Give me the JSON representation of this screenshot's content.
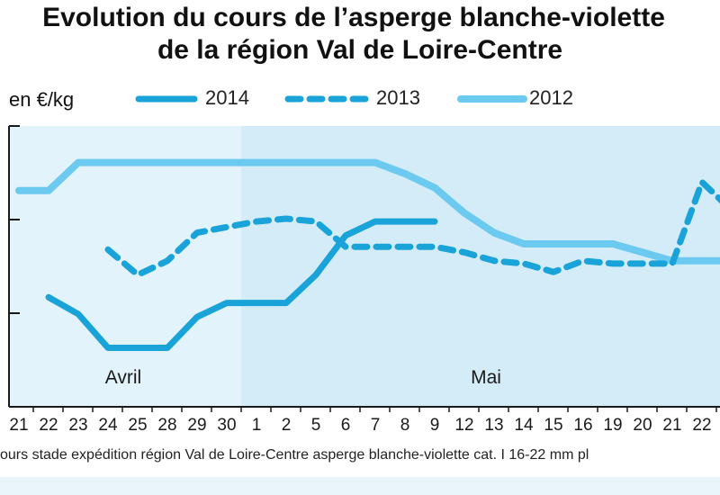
{
  "title_line1": "Evolution du cours de l’asperge blanche-violette",
  "title_line2": "de la région Val de Loire-Centre",
  "unit_label": "en €/kg",
  "source_text": "ours stade expédition région Val de Loire-Centre asperge blanche-violette cat. I 16-22 mm pl",
  "colors": {
    "s2014": "#1aa3d9",
    "s2013": "#1aa3d9",
    "s2012": "#6ccaf0",
    "april_bg": "#e3f3fb",
    "may_bg": "#d3ecf8",
    "axis": "#1a1a1a"
  },
  "chart_data": {
    "type": "line",
    "title": "Evolution du cours de l’asperge blanche-violette de la région Val de Loire-Centre",
    "ylabel": "en €/kg",
    "y_gridlines": 3,
    "grid": false,
    "legend_position": "top",
    "month_labels": [
      "Avril",
      "Mai"
    ],
    "x": [
      "21",
      "22",
      "23",
      "24",
      "25",
      "28",
      "29",
      "30",
      "1",
      "2",
      "5",
      "6",
      "7",
      "8",
      "9",
      "12",
      "13",
      "14",
      "15",
      "16",
      "19",
      "20",
      "21",
      "22",
      "2"
    ],
    "series": [
      {
        "name": "2014",
        "style": "solid",
        "values": [
          null,
          0.64,
          0.58,
          0.46,
          0.46,
          0.46,
          0.57,
          0.62,
          0.62,
          0.62,
          0.72,
          0.86,
          0.91,
          0.91,
          0.91,
          null,
          null,
          null,
          null,
          null,
          null,
          null,
          null,
          null,
          null
        ]
      },
      {
        "name": "2013",
        "style": "dashed",
        "values": [
          null,
          null,
          null,
          0.81,
          0.72,
          0.77,
          0.87,
          0.89,
          0.91,
          0.92,
          0.91,
          0.82,
          0.82,
          0.82,
          0.82,
          0.8,
          0.77,
          0.76,
          0.73,
          0.77,
          0.76,
          0.76,
          0.76,
          1.05,
          0.95
        ]
      },
      {
        "name": "2012",
        "style": "solid-light",
        "values": [
          1.02,
          1.02,
          1.12,
          1.12,
          1.12,
          1.12,
          1.12,
          1.12,
          1.12,
          1.12,
          1.12,
          1.12,
          1.12,
          1.08,
          1.03,
          0.94,
          0.87,
          0.83,
          0.83,
          0.83,
          0.83,
          0.8,
          0.77,
          0.77,
          0.77
        ]
      }
    ]
  }
}
